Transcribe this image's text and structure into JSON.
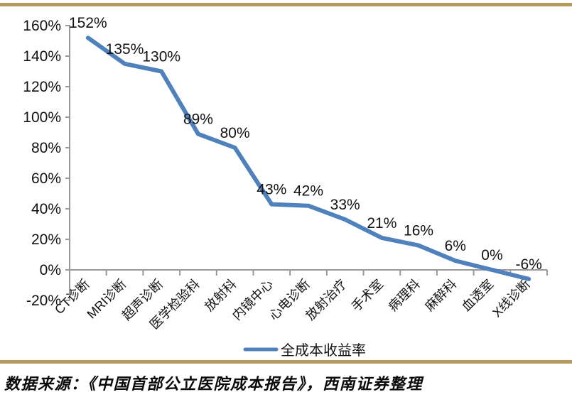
{
  "page": {
    "background": "#ffffff",
    "frame_border_color": "#b49a5c"
  },
  "chart_data": {
    "type": "line",
    "title": "",
    "xlabel": "",
    "ylabel": "",
    "categories": [
      "CT诊断",
      "MRI诊断",
      "超声诊断",
      "医学检验科",
      "放射科",
      "内镜中心",
      "心电诊断",
      "放射治疗",
      "手术室",
      "病理科",
      "麻醉科",
      "血透室",
      "X线诊断"
    ],
    "series": [
      {
        "name": "全成本收益率",
        "color": "#4f81bd",
        "values": [
          152,
          135,
          130,
          89,
          80,
          43,
          42,
          33,
          21,
          16,
          6,
          0,
          -6
        ],
        "data_labels": [
          "152%",
          "135%",
          "130%",
          "89%",
          "80%",
          "43%",
          "42%",
          "33%",
          "21%",
          "16%",
          "6%",
          "0%",
          "-6%"
        ]
      }
    ],
    "legend": [
      {
        "label": "全成本收益率",
        "color": "#4f81bd"
      }
    ],
    "legend_position": "bottom-center",
    "ylim": [
      -20,
      160
    ],
    "y_tick_step": 20,
    "y_tick_labels": [
      "160%",
      "140%",
      "120%",
      "100%",
      "80%",
      "60%",
      "40%",
      "20%",
      "0%",
      "-20%"
    ],
    "grid": false,
    "axis_color": "#999999",
    "text_color": "#121212"
  },
  "footer": {
    "source": "数据来源：《中国首部公立医院成本报告》，西南证券整理"
  }
}
